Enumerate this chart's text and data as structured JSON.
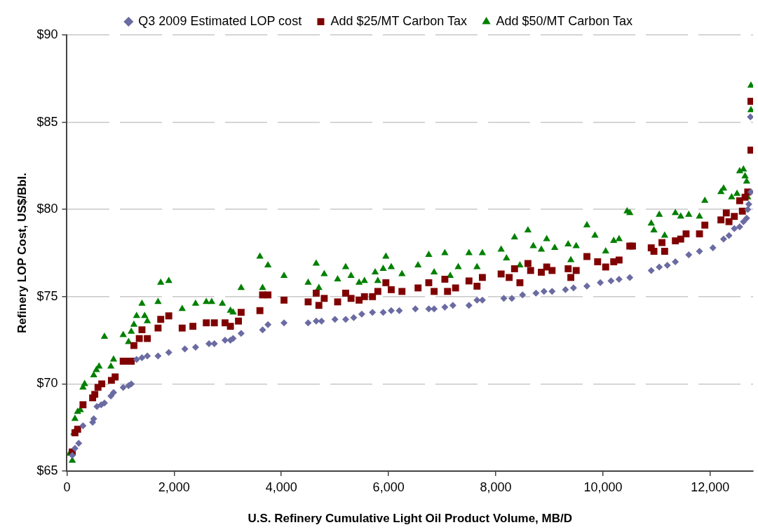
{
  "chart_data": {
    "type": "scatter",
    "xlabel": "U.S. Refinery Cumulative Light Oil Product Volume, MB/D",
    "ylabel": "Refinery LOP Cost, US$/Bbl.",
    "xlim": [
      0,
      12800
    ],
    "xticks": [
      0,
      {
        "value": 2000,
        "label": "2,000"
      },
      {
        "value": 4000,
        "label": "4,000"
      },
      {
        "value": 6000,
        "label": "6,000"
      },
      {
        "value": 8000,
        "label": "8,000"
      },
      {
        "value": 10000,
        "label": "10,000"
      },
      {
        "value": 12000,
        "label": "12,000"
      }
    ],
    "ylim": [
      65,
      90
    ],
    "yticks": [
      {
        "value": 65,
        "label": "$65"
      },
      {
        "value": 70,
        "label": "$70"
      },
      {
        "value": 75,
        "label": "$75"
      },
      {
        "value": 80,
        "label": "$80"
      },
      {
        "value": 85,
        "label": "$85"
      },
      {
        "value": 90,
        "label": "$90"
      }
    ],
    "grid": "y",
    "legend": "top",
    "series": [
      {
        "name": "Q3 2009 Estimated LOP cost",
        "color": "#6b6ba3",
        "marker": "diamond",
        "x": [
          100,
          150,
          220,
          300,
          480,
          500,
          560,
          640,
          700,
          820,
          870,
          1050,
          1150,
          1200,
          1300,
          1400,
          1500,
          1700,
          1900,
          2200,
          2400,
          2650,
          2750,
          2950,
          3050,
          3100,
          3250,
          3650,
          3750,
          4050,
          4500,
          4650,
          4750,
          5000,
          5200,
          5350,
          5500,
          5700,
          5900,
          6050,
          6200,
          6500,
          6750,
          6850,
          7050,
          7200,
          7500,
          7650,
          7750,
          8150,
          8300,
          8500,
          8750,
          8900,
          9050,
          9300,
          9450,
          9700,
          9950,
          10150,
          10300,
          10500,
          10900,
          11050,
          11200,
          11350,
          11600,
          11800,
          12050,
          12250,
          12350,
          12450,
          12550,
          12620,
          12680,
          12700,
          12720,
          12760,
          12750
        ],
        "values": [
          65.9,
          66.3,
          66.6,
          67.6,
          67.8,
          68.0,
          68.7,
          68.8,
          68.9,
          69.3,
          69.5,
          69.8,
          69.9,
          70.0,
          71.4,
          71.5,
          71.6,
          71.6,
          71.8,
          72.0,
          72.1,
          72.3,
          72.3,
          72.5,
          72.5,
          72.6,
          72.9,
          73.1,
          73.4,
          73.5,
          73.5,
          73.6,
          73.6,
          73.7,
          73.7,
          73.8,
          74.0,
          74.1,
          74.1,
          74.2,
          74.2,
          74.3,
          74.3,
          74.3,
          74.4,
          74.5,
          74.5,
          74.8,
          74.8,
          74.9,
          74.9,
          75.1,
          75.2,
          75.3,
          75.3,
          75.4,
          75.5,
          75.6,
          75.8,
          75.9,
          76.0,
          76.1,
          76.5,
          76.7,
          76.8,
          77.0,
          77.4,
          77.6,
          77.8,
          78.3,
          78.5,
          78.9,
          79.0,
          79.3,
          79.5,
          80.0,
          80.3,
          81.0,
          85.3
        ]
      },
      {
        "name": "Add $25/MT Carbon Tax",
        "color": "#800000",
        "marker": "square",
        "x": [
          100,
          150,
          200,
          300,
          480,
          520,
          580,
          650,
          830,
          900,
          1050,
          1150,
          1200,
          1250,
          1350,
          1400,
          1500,
          1700,
          1750,
          1900,
          2150,
          2350,
          2600,
          2750,
          2950,
          3050,
          3200,
          3250,
          3600,
          3650,
          3750,
          4050,
          4500,
          4650,
          4700,
          4800,
          5050,
          5200,
          5300,
          5450,
          5550,
          5700,
          5800,
          5950,
          6050,
          6250,
          6550,
          6750,
          6850,
          7050,
          7100,
          7250,
          7500,
          7650,
          7750,
          8100,
          8250,
          8350,
          8450,
          8600,
          8650,
          8850,
          8950,
          9050,
          9350,
          9400,
          9500,
          9700,
          9900,
          10050,
          10200,
          10300,
          10500,
          10550,
          10900,
          10950,
          11100,
          11150,
          11350,
          11450,
          11550,
          11800,
          11900,
          12200,
          12300,
          12350,
          12450,
          12550,
          12600,
          12650,
          12700,
          12760,
          12760
        ],
        "values": [
          66.1,
          67.2,
          67.4,
          68.8,
          69.2,
          69.4,
          69.8,
          70.0,
          70.2,
          70.4,
          71.3,
          71.3,
          71.3,
          72.2,
          72.6,
          73.1,
          72.6,
          73.2,
          73.7,
          73.9,
          73.2,
          73.3,
          73.5,
          73.5,
          73.5,
          73.3,
          73.6,
          74.1,
          74.2,
          75.1,
          75.1,
          74.8,
          74.7,
          75.2,
          74.5,
          74.9,
          74.7,
          75.2,
          74.9,
          74.8,
          75.0,
          75.0,
          75.3,
          75.8,
          75.4,
          75.3,
          75.5,
          75.8,
          75.3,
          76.0,
          75.3,
          75.5,
          75.9,
          75.6,
          76.1,
          76.3,
          76.1,
          76.6,
          75.8,
          76.9,
          76.5,
          76.4,
          76.7,
          76.5,
          76.6,
          76.1,
          76.5,
          77.3,
          77.0,
          76.7,
          77.0,
          77.1,
          77.9,
          77.9,
          77.8,
          77.6,
          78.1,
          77.6,
          78.2,
          78.3,
          78.6,
          78.6,
          79.1,
          79.4,
          79.8,
          79.3,
          79.6,
          80.5,
          79.9,
          80.7,
          81.0,
          83.4,
          86.2
        ]
      },
      {
        "name": "Add $50/MT Carbon Tax",
        "color": "#008000",
        "marker": "triangle",
        "x": [
          50,
          100,
          130,
          150,
          200,
          250,
          300,
          330,
          500,
          550,
          600,
          700,
          820,
          870,
          1050,
          1150,
          1200,
          1250,
          1300,
          1400,
          1450,
          1500,
          1700,
          1750,
          1900,
          2150,
          2400,
          2600,
          2700,
          2900,
          3050,
          3100,
          3250,
          3600,
          3650,
          3750,
          4050,
          4500,
          4650,
          4700,
          4800,
          5050,
          5200,
          5300,
          5450,
          5550,
          5750,
          5800,
          5900,
          5950,
          6050,
          6250,
          6550,
          6750,
          6850,
          7050,
          7150,
          7300,
          7500,
          7650,
          7750,
          8100,
          8200,
          8350,
          8450,
          8600,
          8700,
          8850,
          8950,
          9100,
          9350,
          9400,
          9500,
          9700,
          9850,
          10050,
          10200,
          10300,
          10450,
          10500,
          10900,
          10950,
          11050,
          11150,
          11350,
          11450,
          11600,
          11800,
          11900,
          12200,
          12250,
          12400,
          12500,
          12550,
          12620,
          12650,
          12680,
          12700,
          12760,
          12760
        ],
        "values": [
          66.0,
          65.6,
          67.2,
          68.0,
          68.4,
          68.5,
          69.8,
          70.0,
          70.5,
          70.8,
          71.0,
          72.7,
          71.0,
          71.4,
          72.8,
          72.4,
          73.0,
          73.4,
          73.9,
          74.6,
          73.9,
          73.6,
          74.7,
          75.8,
          75.9,
          74.3,
          74.6,
          74.7,
          74.7,
          74.6,
          74.2,
          74.1,
          75.5,
          77.3,
          75.5,
          76.8,
          76.2,
          75.8,
          76.9,
          75.5,
          76.3,
          76.0,
          76.7,
          76.2,
          75.8,
          75.9,
          76.4,
          75.9,
          76.6,
          77.3,
          76.7,
          76.3,
          76.8,
          77.4,
          76.4,
          77.5,
          76.2,
          76.7,
          77.5,
          76.7,
          77.5,
          77.7,
          77.2,
          78.4,
          76.8,
          78.8,
          77.9,
          77.7,
          78.3,
          77.8,
          78.0,
          77.1,
          77.9,
          79.1,
          78.5,
          77.6,
          78.2,
          78.3,
          79.9,
          79.8,
          79.2,
          78.8,
          79.7,
          78.5,
          79.8,
          79.6,
          79.7,
          79.6,
          80.5,
          81.0,
          81.2,
          80.7,
          80.9,
          82.2,
          82.3,
          81.9,
          81.6,
          80.7,
          85.7,
          87.1
        ]
      }
    ]
  }
}
